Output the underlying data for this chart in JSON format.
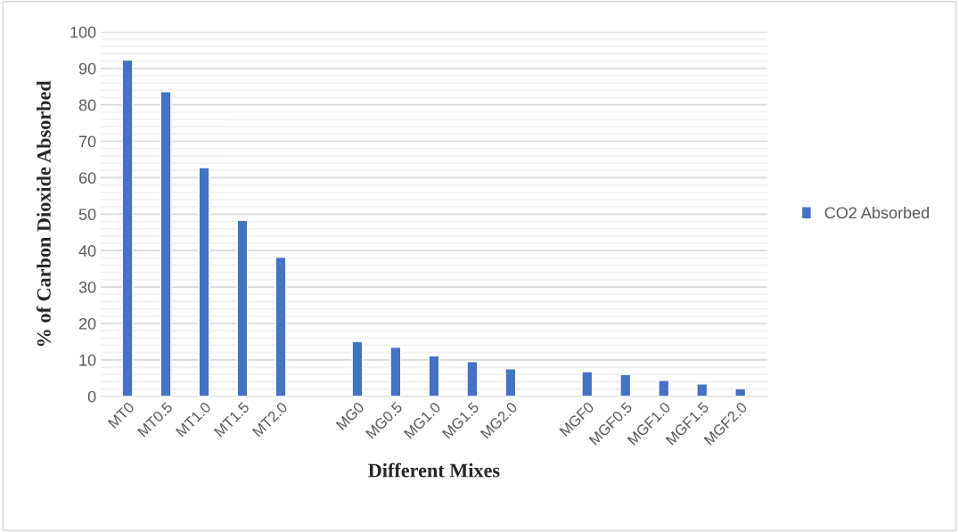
{
  "chart_data": {
    "type": "bar",
    "categories": [
      "MT0",
      "MT0.5",
      "MT1.0",
      "MT1.5",
      "MT2.0",
      null,
      "MG0",
      "MG0.5",
      "MG1.0",
      "MG1.5",
      "MG2.0",
      null,
      "MGF0",
      "MGF0.5",
      "MGF1.0",
      "MGF1.5",
      "MGF2.0"
    ],
    "series": [
      {
        "name": "CO2 Absorbed",
        "color": "#4472c4",
        "values": [
          92.3,
          83.6,
          62.8,
          48.3,
          38.2,
          null,
          15.0,
          13.5,
          11.1,
          9.5,
          7.6,
          null,
          6.8,
          6.0,
          4.4,
          3.4,
          2.1
        ]
      }
    ],
    "xlabel": "Different Mixes",
    "ylabel": "% of Carbon Dioxide Absorbed",
    "ylim": [
      0,
      100
    ],
    "yticks": [
      0,
      {
        "value": 2,
        "label": null
      },
      {
        "value": 4,
        "label": null
      },
      {
        "value": 6,
        "label": null
      },
      {
        "value": 8,
        "label": null
      },
      10,
      {
        "value": 12,
        "label": null
      },
      {
        "value": 14,
        "label": null
      },
      {
        "value": 16,
        "label": null
      },
      {
        "value": 18,
        "label": null
      },
      20,
      {
        "value": 22,
        "label": null
      },
      {
        "value": 24,
        "label": null
      },
      {
        "value": 26,
        "label": null
      },
      {
        "value": 28,
        "label": null
      },
      30,
      {
        "value": 32,
        "label": null
      },
      {
        "value": 34,
        "label": null
      },
      {
        "value": 36,
        "label": null
      },
      {
        "value": 38,
        "label": null
      },
      40,
      {
        "value": 42,
        "label": null
      },
      {
        "value": 44,
        "label": null
      },
      {
        "value": 46,
        "label": null
      },
      {
        "value": 48,
        "label": null
      },
      50,
      {
        "value": 52,
        "label": null
      },
      {
        "value": 54,
        "label": null
      },
      {
        "value": 56,
        "label": null
      },
      {
        "value": 58,
        "label": null
      },
      60,
      {
        "value": 62,
        "label": null
      },
      {
        "value": 64,
        "label": null
      },
      {
        "value": 66,
        "label": null
      },
      {
        "value": 68,
        "label": null
      },
      70,
      {
        "value": 72,
        "label": null
      },
      {
        "value": 74,
        "label": null
      },
      {
        "value": 76,
        "label": null
      },
      {
        "value": 78,
        "label": null
      },
      80,
      {
        "value": 82,
        "label": null
      },
      {
        "value": 84,
        "label": null
      },
      {
        "value": 86,
        "label": null
      },
      {
        "value": 88,
        "label": null
      },
      90,
      {
        "value": 92,
        "label": null
      },
      {
        "value": 94,
        "label": null
      },
      {
        "value": 96,
        "label": null
      },
      {
        "value": 98,
        "label": null
      },
      100
    ],
    "grid": "y",
    "legend": "right"
  }
}
